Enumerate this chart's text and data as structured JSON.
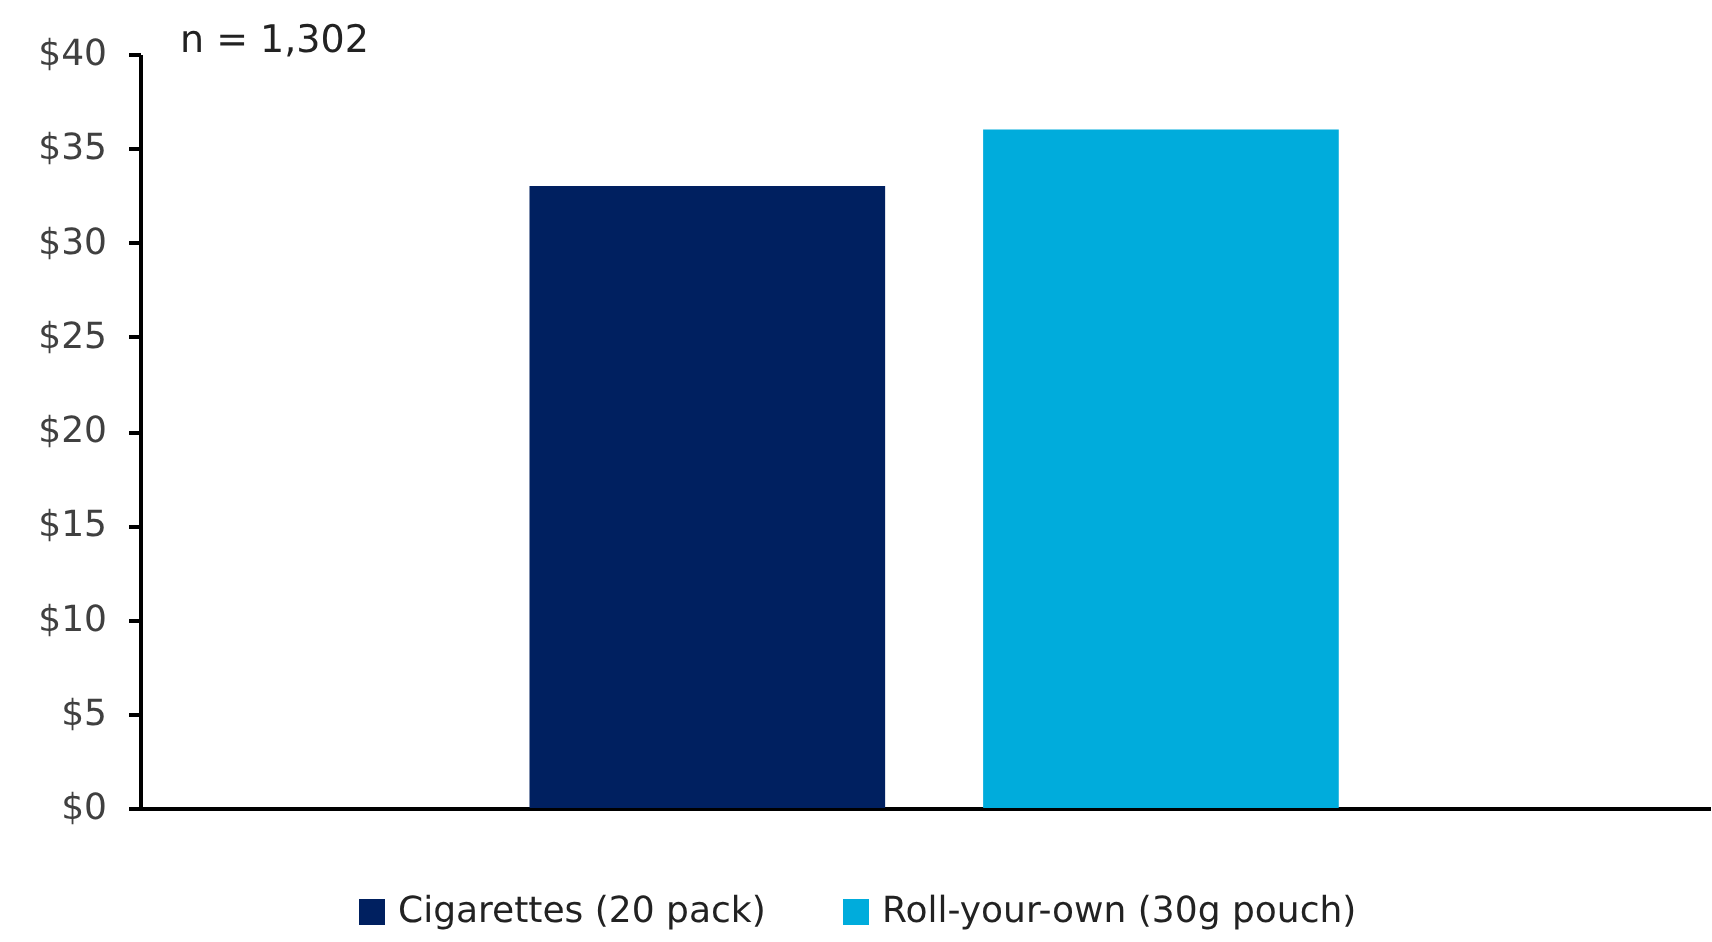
{
  "chart_data": {
    "type": "bar",
    "categories": [
      null
    ],
    "series": [
      {
        "name": "Cigarettes (20 pack)",
        "color": "#002060",
        "values": [
          33
        ]
      },
      {
        "name": "Roll-your-own (30g pouch)",
        "color": "#00acdc",
        "values": [
          36
        ]
      }
    ],
    "ylim": [
      0,
      40
    ],
    "yticks": [
      {
        "value": 0,
        "label": "$0"
      },
      {
        "value": 5,
        "label": "$5"
      },
      {
        "value": 10,
        "label": "$10"
      },
      {
        "value": 15,
        "label": "$15"
      },
      {
        "value": 20,
        "label": "$20"
      },
      {
        "value": 25,
        "label": "$25"
      },
      {
        "value": 30,
        "label": "$30"
      },
      {
        "value": 35,
        "label": "$35"
      },
      {
        "value": 40,
        "label": "$40"
      }
    ],
    "legend": "bottom",
    "annotations": [
      "n = 1,302"
    ]
  }
}
